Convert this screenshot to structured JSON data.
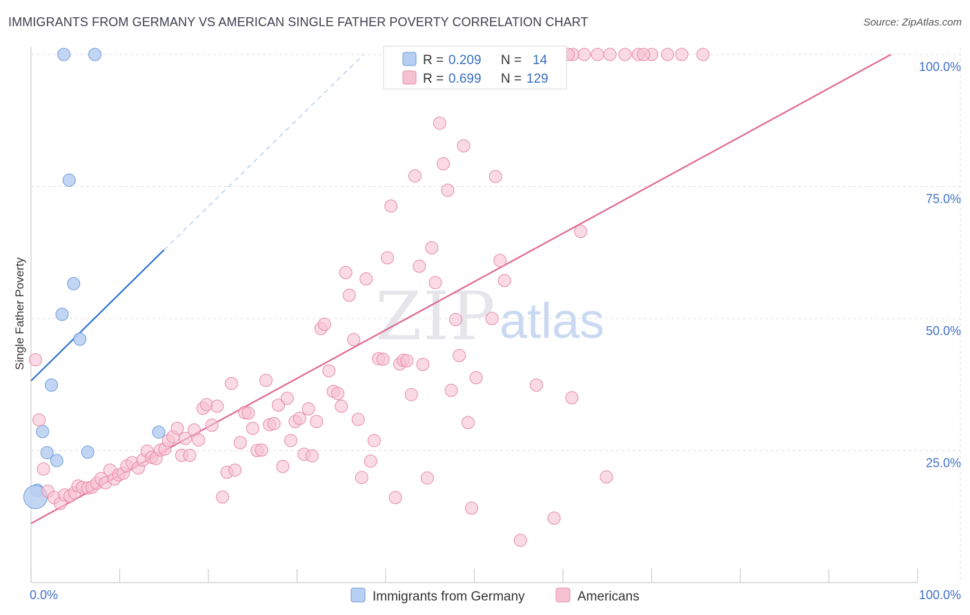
{
  "title": "IMMIGRANTS FROM GERMANY VS AMERICAN SINGLE FATHER POVERTY CORRELATION CHART",
  "source": "Source: ZipAtlas.com",
  "watermark": {
    "zip": "ZIP",
    "atlas": "atlas"
  },
  "colors": {
    "blue_fill": "#b7cff2",
    "blue_stroke": "#6a9ad8",
    "blue_line": "#2f74d0",
    "pink_fill": "#f6c2d2",
    "pink_stroke": "#e58aa8",
    "pink_line": "#e06890",
    "axis_text": "#4472c4",
    "grid": "#dddddd"
  },
  "legend_box": [
    {
      "r_label": "R = ",
      "r_value": "0.209",
      "n_label": "N = ",
      "n_value": "14",
      "color": "blue"
    },
    {
      "r_label": "R = ",
      "r_value": "0.699",
      "n_label": "N = ",
      "n_value": "129",
      "color": "pink"
    }
  ],
  "chart_data": {
    "type": "scatter",
    "xlabel": "",
    "ylabel": "Single Father Poverty",
    "xlim": [
      0,
      100
    ],
    "ylim": [
      0,
      100
    ],
    "x_tick_labels": [
      "0.0%",
      "100.0%"
    ],
    "y_ticks": [
      25,
      50,
      75,
      100
    ],
    "y_tick_labels": [
      "25.0%",
      "50.0%",
      "75.0%",
      "100.0%"
    ],
    "grid": true,
    "legend": "bottom-center",
    "series": [
      {
        "name": "Immigrants from Germany",
        "color": "blue",
        "trend": {
          "x0": 0,
          "y0": 38.2,
          "x1": 15,
          "y1": 63,
          "dashed_to_x": 37.5,
          "dashed_to_y": 100
        },
        "points": [
          [
            3.7,
            100
          ],
          [
            7.2,
            100
          ],
          [
            4.3,
            76.2
          ],
          [
            4.8,
            56.6
          ],
          [
            3.5,
            50.8
          ],
          [
            5.5,
            46.1
          ],
          [
            2.3,
            37.4
          ],
          [
            1.3,
            28.6
          ],
          [
            1.8,
            24.6
          ],
          [
            2.9,
            23.1
          ],
          [
            6.4,
            24.7
          ],
          [
            14.4,
            28.5
          ],
          [
            0.7,
            17.5
          ],
          [
            0.5,
            16.2,
            "large"
          ]
        ]
      },
      {
        "name": "Americans",
        "color": "pink",
        "trend": {
          "x0": 0,
          "y0": 11.2,
          "x1": 97,
          "y1": 100
        },
        "points": [
          [
            0.5,
            42.2
          ],
          [
            0.9,
            30.8
          ],
          [
            1.4,
            21.5
          ],
          [
            1.9,
            17.3
          ],
          [
            2.6,
            16.1
          ],
          [
            3.3,
            15.0
          ],
          [
            3.8,
            16.6
          ],
          [
            4.4,
            16.4
          ],
          [
            4.9,
            17.0
          ],
          [
            5.3,
            18.3
          ],
          [
            5.8,
            18.0
          ],
          [
            6.4,
            17.9
          ],
          [
            6.9,
            18.1
          ],
          [
            7.4,
            18.8
          ],
          [
            7.9,
            19.7
          ],
          [
            8.4,
            18.9
          ],
          [
            8.9,
            21.3
          ],
          [
            9.4,
            19.6
          ],
          [
            9.9,
            20.4
          ],
          [
            10.4,
            20.7
          ],
          [
            10.8,
            22.1
          ],
          [
            11.4,
            22.7
          ],
          [
            12.1,
            21.7
          ],
          [
            12.6,
            23.2
          ],
          [
            13.1,
            24.9
          ],
          [
            13.6,
            23.7
          ],
          [
            14.1,
            23.5
          ],
          [
            14.6,
            25.1
          ],
          [
            15.1,
            25.3
          ],
          [
            15.5,
            26.9
          ],
          [
            16.0,
            27.6
          ],
          [
            16.5,
            29.2
          ],
          [
            17.0,
            24.1
          ],
          [
            17.4,
            27.3
          ],
          [
            17.9,
            24.1
          ],
          [
            18.4,
            28.9
          ],
          [
            18.9,
            27.0
          ],
          [
            19.4,
            33.0
          ],
          [
            19.8,
            33.7
          ],
          [
            20.4,
            29.8
          ],
          [
            21.0,
            33.4
          ],
          [
            21.6,
            16.2
          ],
          [
            22.1,
            20.9
          ],
          [
            22.6,
            37.7
          ],
          [
            23.0,
            21.3
          ],
          [
            23.6,
            26.5
          ],
          [
            24.1,
            32.2
          ],
          [
            24.5,
            32.1
          ],
          [
            25.0,
            29.2
          ],
          [
            25.5,
            25.0
          ],
          [
            26.0,
            25.1
          ],
          [
            26.5,
            38.3
          ],
          [
            26.9,
            29.9
          ],
          [
            27.4,
            30.1
          ],
          [
            27.9,
            33.6
          ],
          [
            28.4,
            22.0
          ],
          [
            28.9,
            34.9
          ],
          [
            29.3,
            26.9
          ],
          [
            29.8,
            30.5
          ],
          [
            30.3,
            31.1
          ],
          [
            30.8,
            24.3
          ],
          [
            31.3,
            32.9
          ],
          [
            31.7,
            24.0
          ],
          [
            32.2,
            30.5
          ],
          [
            32.7,
            48.1
          ],
          [
            33.1,
            48.9
          ],
          [
            33.6,
            40.1
          ],
          [
            34.1,
            36.2
          ],
          [
            34.6,
            35.8
          ],
          [
            35.0,
            33.4
          ],
          [
            35.5,
            58.7
          ],
          [
            35.9,
            54.4
          ],
          [
            36.4,
            46.0
          ],
          [
            36.9,
            30.9
          ],
          [
            37.3,
            19.9
          ],
          [
            37.8,
            57.5
          ],
          [
            38.3,
            23.0
          ],
          [
            38.7,
            26.9
          ],
          [
            39.2,
            42.4
          ],
          [
            39.7,
            42.3
          ],
          [
            40.2,
            61.5
          ],
          [
            40.6,
            71.3
          ],
          [
            41.1,
            16.1
          ],
          [
            41.6,
            41.4
          ],
          [
            42.0,
            42.1
          ],
          [
            42.4,
            42.0
          ],
          [
            42.9,
            35.6
          ],
          [
            43.3,
            77.0
          ],
          [
            43.8,
            59.9
          ],
          [
            44.2,
            41.3
          ],
          [
            44.7,
            19.8
          ],
          [
            45.2,
            63.4
          ],
          [
            45.6,
            56.8
          ],
          [
            46.1,
            87.0
          ],
          [
            46.5,
            79.3
          ],
          [
            47.0,
            74.3
          ],
          [
            47.4,
            36.4
          ],
          [
            47.9,
            49.8
          ],
          [
            48.3,
            43.0
          ],
          [
            48.8,
            82.7
          ],
          [
            49.3,
            30.3
          ],
          [
            49.7,
            14.1
          ],
          [
            50.2,
            38.8
          ],
          [
            52.0,
            50.0
          ],
          [
            52.4,
            76.9
          ],
          [
            52.9,
            61.0
          ],
          [
            53.4,
            57.2
          ],
          [
            55.2,
            8.0
          ],
          [
            57.0,
            37.4
          ],
          [
            59.0,
            12.2
          ],
          [
            61.0,
            35.0
          ],
          [
            62.0,
            66.5
          ],
          [
            64.9,
            20.0
          ],
          [
            59.3,
            100
          ],
          [
            61.1,
            100
          ],
          [
            63.9,
            100
          ],
          [
            65.3,
            100
          ],
          [
            67.0,
            100
          ],
          [
            68.5,
            100
          ],
          [
            70.0,
            100
          ],
          [
            71.8,
            100
          ],
          [
            73.4,
            100
          ],
          [
            75.8,
            100
          ],
          [
            56.3,
            100
          ],
          [
            57.9,
            100
          ],
          [
            60.6,
            100
          ],
          [
            58.6,
            100
          ],
          [
            62.4,
            100
          ],
          [
            69.1,
            100
          ]
        ]
      }
    ]
  },
  "bottom_legend": [
    {
      "label": "Immigrants from Germany",
      "color": "blue"
    },
    {
      "label": "Americans",
      "color": "pink"
    }
  ]
}
